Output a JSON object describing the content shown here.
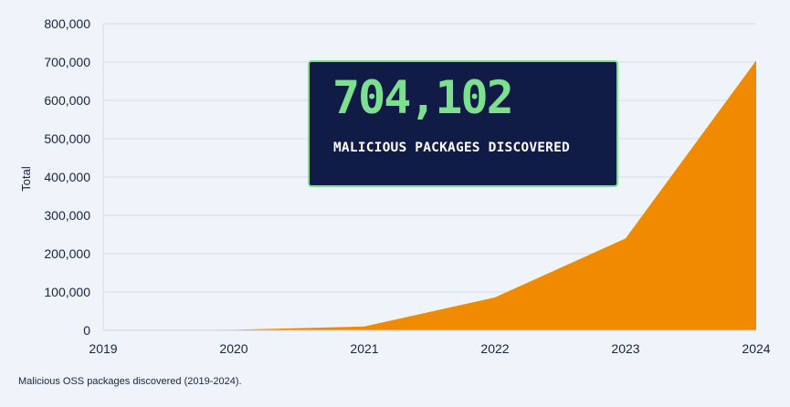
{
  "colors": {
    "background": "#eef4fa",
    "area_fill": "#f08a00",
    "grid": "#d6dde7",
    "highlight_bg": "#101c45",
    "highlight_accent": "#7de08e",
    "text": "#1b2340"
  },
  "highlight": {
    "value": "704,102",
    "label": "MALICIOUS PACKAGES DISCOVERED"
  },
  "caption": "Malicious OSS packages discovered (2019-2024).",
  "chart_data": {
    "type": "area",
    "title": "",
    "xlabel": "",
    "ylabel": "Total",
    "x": [
      2019,
      2020,
      2021,
      2022,
      2023,
      2024
    ],
    "series": [
      {
        "values": [
          0,
          1500,
          10000,
          86000,
          240000,
          704102
        ]
      }
    ],
    "ylim": [
      0,
      800000
    ],
    "y_ticks": [
      0,
      100000,
      200000,
      300000,
      400000,
      500000,
      600000,
      700000,
      800000
    ],
    "y_tick_labels": [
      "0",
      "100,000",
      "200,000",
      "300,000",
      "400,000",
      "500,000",
      "600,000",
      "700,000",
      "800,000"
    ],
    "x_tick_labels": [
      "2019",
      "2020",
      "2021",
      "2022",
      "2023",
      "2024"
    ],
    "grid": true,
    "legend": "none"
  }
}
